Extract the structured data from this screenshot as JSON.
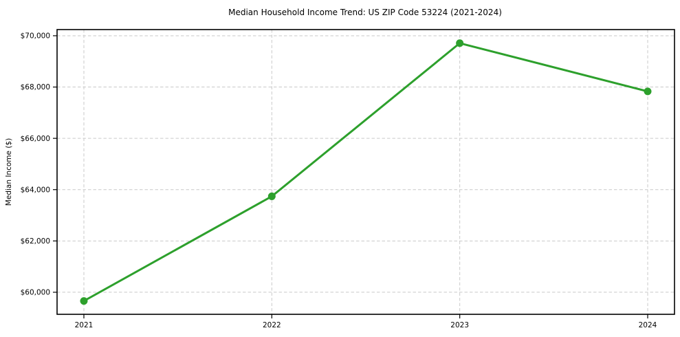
{
  "chart_data": {
    "type": "line",
    "title": "Median Household Income Trend: US ZIP Code 53224 (2021-2024)",
    "xlabel": "",
    "ylabel": "Median Income ($)",
    "categories": [
      "2021",
      "2022",
      "2023",
      "2024"
    ],
    "x": [
      2021,
      2022,
      2023,
      2024
    ],
    "series": [
      {
        "name": "Median Household Income",
        "values": [
          59660,
          63740,
          69710,
          67830
        ]
      }
    ],
    "ylim": [
      59140,
      70240
    ],
    "yticks": [
      60000,
      62000,
      64000,
      66000,
      68000,
      70000
    ],
    "ytick_labels": [
      "$60,000",
      "$62,000",
      "$64,000",
      "$66,000",
      "$68,000",
      "$70,000"
    ],
    "grid": true,
    "grid_style": "dashed",
    "legend": "none",
    "line_color": "#2da02c",
    "marker_color": "#2da02c",
    "grid_color": "#c9c9c9",
    "spine_color": "#000000"
  }
}
